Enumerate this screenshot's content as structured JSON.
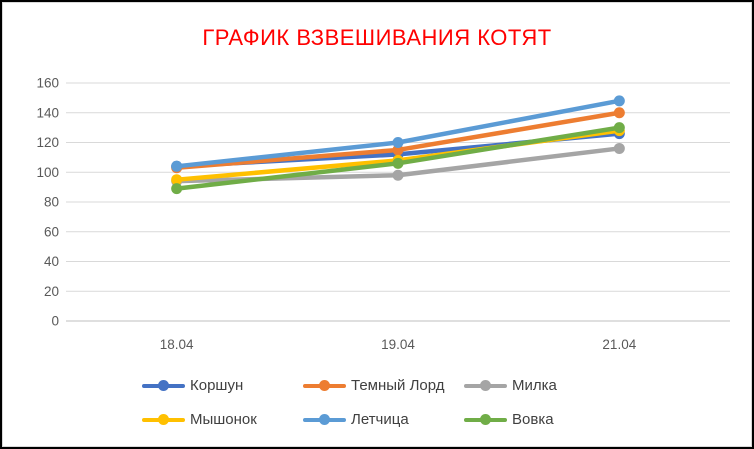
{
  "window": {
    "background": "#ffffff",
    "outer_border_color": "#000000",
    "inner_border_color": "#d9d9d9"
  },
  "chart_data": {
    "type": "line",
    "title": "ГРАФИК ВЗВЕШИВАНИЯ КОТЯТ",
    "title_color": "#ff0000",
    "categories": [
      "18.04",
      "19.04",
      "21.04"
    ],
    "series": [
      {
        "name": "Коршун",
        "color": "#4472C4",
        "values": [
          104,
          112,
          126
        ]
      },
      {
        "name": "Темный Лорд",
        "color": "#ED7D31",
        "values": [
          103,
          115,
          140
        ]
      },
      {
        "name": "Милка",
        "color": "#A5A5A5",
        "values": [
          94,
          98,
          116
        ]
      },
      {
        "name": "Мышонок",
        "color": "#FFC000",
        "values": [
          95,
          108,
          128
        ]
      },
      {
        "name": "Летчица",
        "color": "#5B9BD5",
        "values": [
          104,
          120,
          148
        ]
      },
      {
        "name": "Вовка",
        "color": "#70AD47",
        "values": [
          89,
          106,
          130
        ]
      }
    ],
    "xlabel": "",
    "ylabel": "",
    "ylim": [
      0,
      160
    ],
    "yticks": [
      0,
      20,
      40,
      60,
      80,
      100,
      120,
      140,
      160
    ],
    "grid": true,
    "gridline_color": "#d9d9d9",
    "axis_line_color": "#bfbfbf",
    "tick_label_color": "#595959",
    "legend_position": "bottom",
    "legend_text_color": "#404040",
    "marker": "circle"
  }
}
